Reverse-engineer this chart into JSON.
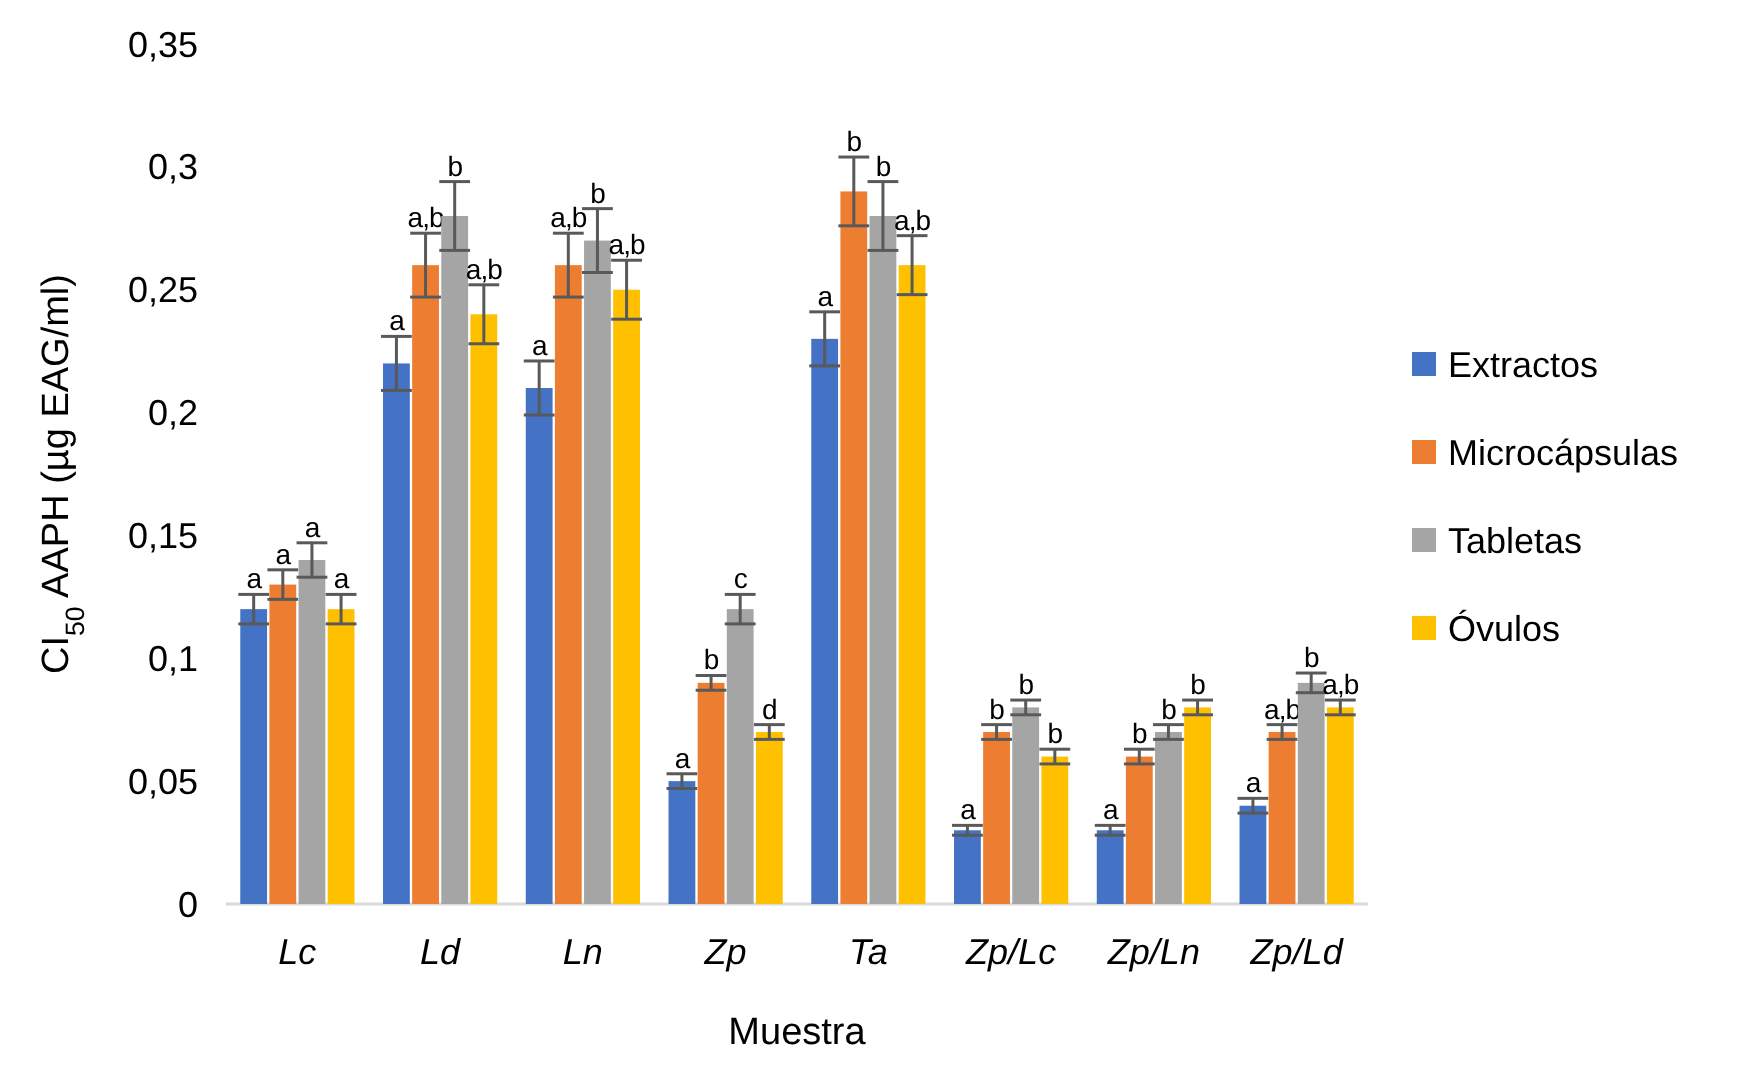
{
  "chart_data": {
    "type": "bar",
    "xlabel": "Muestra",
    "ylabel": "CI$_{50}$ AAPH (µg EAG/ml)",
    "categories": [
      "Lc",
      "Ld",
      "Ln",
      "Zp",
      "Ta",
      "Zp/Lc",
      "Zp/Ln",
      "Zp/Ld"
    ],
    "series": [
      {
        "name": "Extractos",
        "color": "#4472c4",
        "values": [
          0.12,
          0.22,
          0.21,
          0.05,
          0.23,
          0.03,
          0.03,
          0.04
        ],
        "errors": [
          0.006,
          0.011,
          0.011,
          0.003,
          0.011,
          0.002,
          0.002,
          0.003
        ],
        "value_labels": [
          "a",
          "a",
          "a",
          "a",
          "a",
          "a",
          "a",
          "a"
        ]
      },
      {
        "name": "Microcápsulas",
        "color": "#ed7d31",
        "values": [
          0.13,
          0.26,
          0.26,
          0.09,
          0.29,
          0.07,
          0.06,
          0.07
        ],
        "errors": [
          0.006,
          0.013,
          0.013,
          0.003,
          0.014,
          0.003,
          0.003,
          0.003
        ],
        "value_labels": [
          "a",
          "a,b",
          "a,b",
          "b",
          "b",
          "b",
          "b",
          "a,b"
        ]
      },
      {
        "name": "Tabletas",
        "color": "#a5a5a5",
        "values": [
          0.14,
          0.28,
          0.27,
          0.12,
          0.28,
          0.08,
          0.07,
          0.09
        ],
        "errors": [
          0.007,
          0.014,
          0.013,
          0.006,
          0.014,
          0.003,
          0.003,
          0.004
        ],
        "value_labels": [
          "a",
          "b",
          "b",
          "c",
          "b",
          "b",
          "b",
          "b"
        ]
      },
      {
        "name": "Óvulos",
        "color": "#ffc000",
        "values": [
          0.12,
          0.24,
          0.25,
          0.07,
          0.26,
          0.06,
          0.08,
          0.08
        ],
        "errors": [
          0.006,
          0.012,
          0.012,
          0.003,
          0.012,
          0.003,
          0.003,
          0.003
        ],
        "value_labels": [
          "a",
          "a,b",
          "a,b",
          "d",
          "a,b",
          "b",
          "b",
          "a,b"
        ]
      }
    ],
    "ylim": [
      0,
      0.35
    ],
    "yticks": [
      0,
      {
        "value": 0.05,
        "label": "0,05"
      },
      {
        "value": 0.1,
        "label": "0,1"
      },
      {
        "value": 0.15,
        "label": "0,15"
      },
      {
        "value": 0.2,
        "label": "0,2"
      },
      {
        "value": 0.25,
        "label": "0,25"
      },
      {
        "value": 0.3,
        "label": "0,3"
      },
      {
        "value": 0.35,
        "label": "0,35"
      }
    ],
    "legend": "right",
    "grid": false
  }
}
